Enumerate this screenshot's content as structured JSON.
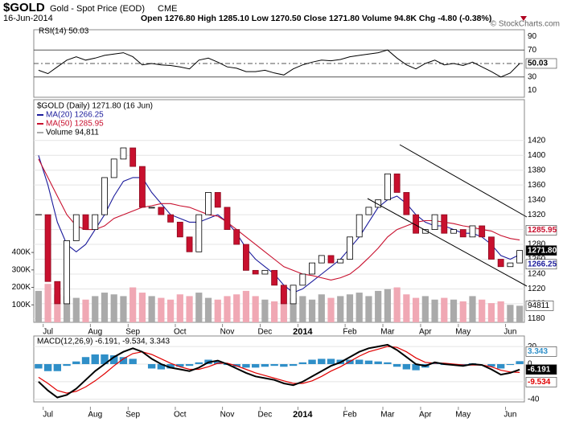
{
  "header": {
    "symbol": "$GOLD",
    "name": "Gold - Spot Price (EOD)",
    "exchange": "CME",
    "date": "16-Jun-2014",
    "quote": "Open 1276.80  High 1285.10  Low 1270.50  Close 1271.80  Volume 94.8K  Chg -4.80 (-0.38%)",
    "copyright": "© StockCharts.com"
  },
  "chart_data": [
    {
      "type": "line",
      "series": [
        {
          "name": "RSI(14) 50.03",
          "color": "#000000",
          "values": [
            40,
            35,
            45,
            55,
            60,
            55,
            58,
            62,
            64,
            66,
            60,
            48,
            50,
            48,
            47,
            45,
            42,
            55,
            58,
            52,
            45,
            43,
            38,
            38,
            40,
            36,
            33,
            42,
            48,
            52,
            55,
            54,
            56,
            60,
            62,
            64,
            66,
            70,
            58,
            48,
            42,
            50,
            55,
            48,
            50,
            47,
            52,
            45,
            38,
            30,
            36,
            50.03
          ]
        }
      ],
      "ylim": [
        0,
        100
      ],
      "yticks": [
        10,
        30,
        50,
        70,
        90
      ],
      "end_labels": [
        "50.03"
      ]
    },
    {
      "type": "candlestick",
      "categories": [
        null,
        "Jul",
        null,
        null,
        null,
        null,
        "Aug",
        null,
        null,
        null,
        "Sep",
        null,
        null,
        null,
        null,
        "Oct",
        null,
        null,
        null,
        null,
        "Nov",
        null,
        null,
        null,
        "Dec",
        null,
        null,
        null,
        "2014",
        null,
        null,
        null,
        null,
        "Feb",
        null,
        null,
        null,
        "Mar",
        null,
        null,
        null,
        "Apr",
        null,
        null,
        null,
        "May",
        null,
        null,
        null,
        null,
        "Jun",
        null
      ],
      "series": [
        {
          "name": "$GOLD (Daily) 1271.80 (16 Jun)",
          "color": "#000000",
          "values": [
            1320,
            1230,
            1200,
            1285,
            1320,
            1300,
            1320,
            1370,
            1395,
            1410,
            1385,
            1330,
            1330,
            1320,
            1310,
            1290,
            1270,
            1320,
            1350,
            1330,
            1300,
            1280,
            1245,
            1240,
            1245,
            1225,
            1200,
            1225,
            1240,
            1255,
            1265,
            1255,
            1260,
            1290,
            1320,
            1330,
            1340,
            1375,
            1350,
            1320,
            1295,
            1300,
            1320,
            1295,
            1300,
            1290,
            1305,
            1290,
            1260,
            1250,
            1255,
            1271.8
          ]
        },
        {
          "name": "MA(20) 1266.25",
          "color": "#1c1c9c",
          "values": [
            1400,
            1360,
            1310,
            1280,
            1270,
            1280,
            1300,
            1320,
            1345,
            1365,
            1370,
            1370,
            1350,
            1335,
            1320,
            1315,
            1310,
            1310,
            1315,
            1320,
            1310,
            1295,
            1275,
            1260,
            1250,
            1240,
            1225,
            1215,
            1220,
            1230,
            1240,
            1250,
            1260,
            1275,
            1290,
            1310,
            1330,
            1340,
            1345,
            1335,
            1320,
            1310,
            1305,
            1305,
            1300,
            1295,
            1295,
            1290,
            1280,
            1265,
            1260,
            1266.25
          ]
        },
        {
          "name": "MA(50) 1285.95",
          "color": "#c8102e",
          "values": [
            1395,
            1370,
            1345,
            1320,
            1305,
            1300,
            1300,
            1305,
            1315,
            1320,
            1325,
            1330,
            1332,
            1335,
            1335,
            1332,
            1330,
            1325,
            1320,
            1318,
            1310,
            1300,
            1290,
            1280,
            1270,
            1260,
            1250,
            1245,
            1240,
            1238,
            1235,
            1232,
            1235,
            1240,
            1250,
            1262,
            1275,
            1290,
            1300,
            1305,
            1310,
            1312,
            1312,
            1310,
            1308,
            1305,
            1303,
            1300,
            1298,
            1292,
            1288,
            1285.95
          ]
        },
        {
          "name": "Volume 94,811",
          "color": "#aaaaaa",
          "axis": "y2",
          "values": [
            180000,
            220000,
            160000,
            150000,
            140000,
            130000,
            150000,
            170000,
            160000,
            150000,
            200000,
            170000,
            150000,
            140000,
            130000,
            160000,
            150000,
            170000,
            140000,
            130000,
            150000,
            160000,
            180000,
            150000,
            130000,
            120000,
            190000,
            140000,
            150000,
            130000,
            160000,
            140000,
            150000,
            160000,
            170000,
            150000,
            180000,
            190000,
            200000,
            160000,
            140000,
            150000,
            130000,
            140000,
            130000,
            120000,
            150000,
            130000,
            110000,
            120000,
            100000,
            94811
          ]
        }
      ],
      "ylim": [
        1175,
        1475
      ],
      "yticks": [
        1180,
        1200,
        1220,
        1240,
        1260,
        1280,
        1300,
        1320,
        1340,
        1360,
        1380,
        1400,
        1420
      ],
      "y2lim": [
        0,
        1275000
      ],
      "y2ticks": [
        {
          "value": 100000,
          "label": "100K"
        },
        {
          "value": 200000,
          "label": "200K"
        },
        {
          "value": 300000,
          "label": "300K"
        },
        {
          "value": 400000,
          "label": "400K"
        }
      ],
      "end_labels": [
        "1285.95",
        "1271.80",
        "1266.25"
      ],
      "volume_end_label": "94811",
      "grid": true
    },
    {
      "type": "macd",
      "legend": "MACD(12,26,9) -6.191, -9.534, 3.343",
      "categories": [
        null,
        "Jul",
        null,
        null,
        null,
        null,
        "Aug",
        null,
        null,
        null,
        "Sep",
        null,
        null,
        null,
        null,
        "Oct",
        null,
        null,
        null,
        null,
        "Nov",
        null,
        null,
        null,
        "Dec",
        null,
        null,
        null,
        "2014",
        null,
        null,
        null,
        null,
        "Feb",
        null,
        null,
        null,
        "Mar",
        null,
        null,
        null,
        "Apr",
        null,
        null,
        null,
        "May",
        null,
        null,
        null,
        null,
        "Jun",
        null
      ],
      "series": [
        {
          "color": "#000000",
          "values": [
            -20,
            -30,
            -38,
            -35,
            -28,
            -18,
            -8,
            0,
            8,
            14,
            18,
            14,
            6,
            0,
            -4,
            -6,
            -8,
            -4,
            2,
            4,
            0,
            -5,
            -10,
            -14,
            -16,
            -18,
            -22,
            -24,
            -20,
            -14,
            -8,
            -2,
            2,
            8,
            14,
            18,
            20,
            22,
            16,
            8,
            0,
            -2,
            2,
            0,
            -1,
            -2,
            0,
            -1,
            -6,
            -12,
            -10,
            -6.191
          ]
        },
        {
          "color": "#e00000",
          "values": [
            -15,
            -22,
            -30,
            -33,
            -31,
            -26,
            -19,
            -11,
            -2,
            6,
            12,
            14,
            11,
            6,
            1,
            -3,
            -6,
            -6,
            -3,
            1,
            1,
            -2,
            -6,
            -10,
            -13,
            -16,
            -19,
            -22,
            -22,
            -19,
            -14,
            -8,
            -3,
            3,
            9,
            14,
            17,
            20,
            19,
            14,
            7,
            2,
            1,
            1,
            0,
            -1,
            -1,
            -1,
            -3,
            -7,
            -9,
            -9.534
          ]
        },
        {
          "color": "#2f8fc8",
          "values": [
            -5,
            -8,
            -8,
            -2,
            3,
            8,
            11,
            11,
            10,
            8,
            6,
            0,
            -5,
            -6,
            -5,
            -3,
            -2,
            2,
            5,
            3,
            -1,
            -3,
            -4,
            -4,
            -3,
            -2,
            -3,
            -2,
            2,
            5,
            6,
            6,
            5,
            5,
            5,
            4,
            3,
            2,
            -3,
            -6,
            -7,
            -4,
            1,
            -1,
            -1,
            -1,
            1,
            0,
            -3,
            -5,
            -1,
            3.343
          ]
        }
      ],
      "ylim": [
        -43,
        32
      ],
      "yticks": [
        20,
        0,
        -20,
        -40
      ],
      "end_labels": [
        "3.343",
        "-6.191",
        "-9.534"
      ]
    }
  ]
}
